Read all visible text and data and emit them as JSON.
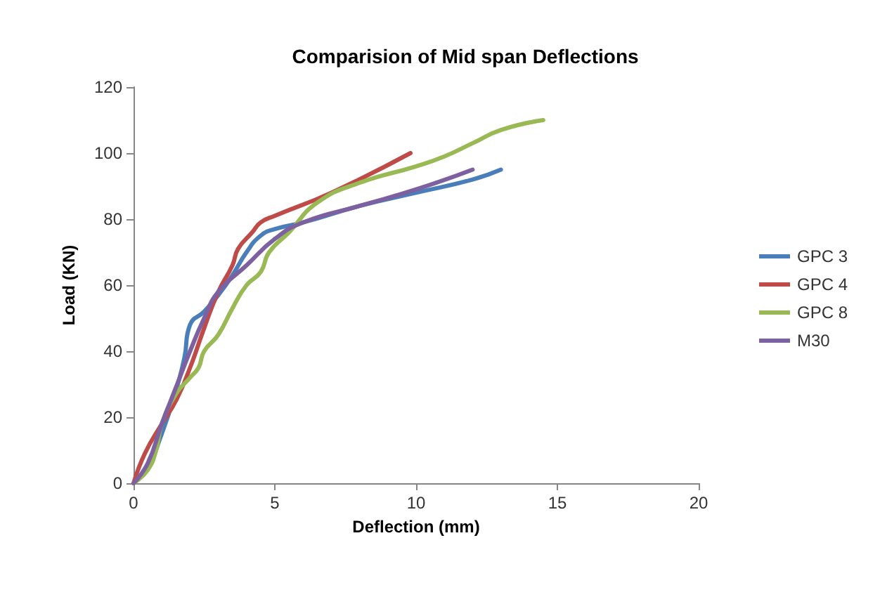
{
  "chart_data": {
    "type": "line",
    "title": "Comparision of Mid span Deflections",
    "xlabel": "Deflection (mm)",
    "ylabel": "Load (KN)",
    "xlim": [
      0,
      20
    ],
    "xticks": [
      0,
      5,
      10,
      15,
      20
    ],
    "ylim": [
      0,
      120
    ],
    "yticks": [
      0,
      20,
      40,
      60,
      80,
      100,
      120
    ],
    "grid": false,
    "legend": "right",
    "marker": "none",
    "line_style": "solid",
    "series": [
      {
        "name": "GPC 3",
        "color": "#4a7ebb",
        "x": [
          0,
          0.5,
          1,
          1.5,
          1.8,
          2,
          2.5,
          3,
          3.5,
          4,
          4.5,
          5,
          6,
          8,
          10,
          12,
          13
        ],
        "values": [
          0,
          5,
          15,
          28,
          38,
          48,
          52,
          57,
          63,
          70,
          75,
          77,
          79,
          84,
          88,
          92,
          95
        ]
      },
      {
        "name": "GPC 4",
        "color": "#be4b48",
        "x": [
          0,
          0.4,
          1,
          1.5,
          2,
          2.5,
          3,
          3.5,
          3.7,
          4.2,
          4.5,
          5,
          7,
          9.8
        ],
        "values": [
          0,
          9,
          18,
          25,
          35,
          47,
          58,
          66,
          71,
          76,
          79,
          81,
          88,
          100
        ]
      },
      {
        "name": "GPC 8",
        "color": "#98b954",
        "x": [
          0,
          0.5,
          0.8,
          1,
          1.5,
          2,
          2.3,
          2.5,
          3,
          3.5,
          4,
          4.5,
          4.8,
          5.5,
          6.5,
          8,
          10,
          11,
          12,
          13,
          14.5
        ],
        "values": [
          0,
          4,
          10,
          18,
          27,
          32,
          35,
          40,
          45,
          53,
          60,
          64,
          70,
          76,
          85,
          91,
          96,
          99,
          103,
          107,
          110
        ]
      },
      {
        "name": "M30",
        "color": "#7d60a0",
        "x": [
          0,
          0.5,
          1,
          1.5,
          2,
          2.5,
          3,
          4,
          5,
          6,
          8,
          10,
          12
        ],
        "values": [
          0,
          6,
          18,
          29,
          40,
          50,
          58,
          66,
          74,
          79,
          84,
          89,
          95
        ]
      }
    ]
  }
}
